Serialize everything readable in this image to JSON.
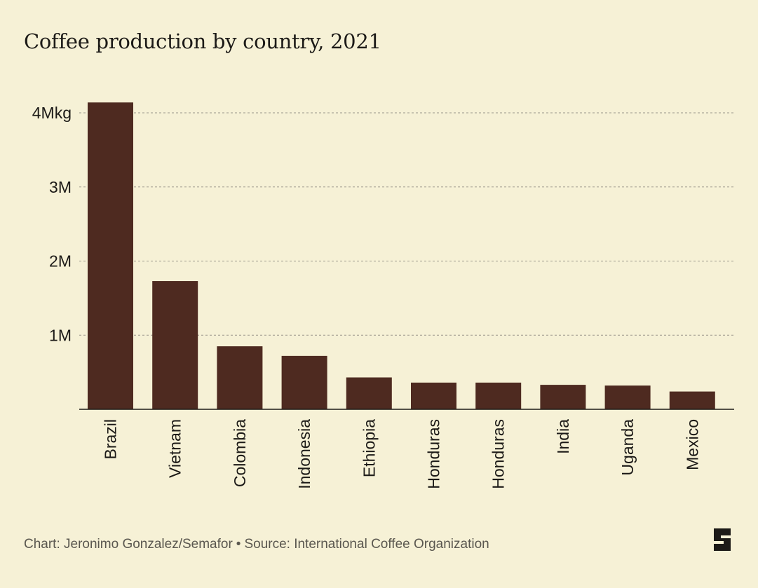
{
  "chart_data": {
    "type": "bar",
    "title": "Coffee production by country, 2021",
    "categories": [
      "Brazil",
      "Vietnam",
      "Colombia",
      "Indonesia",
      "Ethiopia",
      "Honduras",
      "Honduras",
      "India",
      "Uganda",
      "Mexico"
    ],
    "values": [
      4.14,
      1.73,
      0.85,
      0.72,
      0.43,
      0.36,
      0.36,
      0.33,
      0.32,
      0.24
    ],
    "value_unit": "million kg",
    "ylim": [
      0,
      4
    ],
    "yticks": [
      {
        "value": 1,
        "label": "1M"
      },
      {
        "value": 2,
        "label": "2M"
      },
      {
        "value": 3,
        "label": "3M"
      },
      {
        "value": 4,
        "label": "4Mkg"
      }
    ],
    "xlabel": "",
    "ylabel": "",
    "grid": true,
    "bar_color": "#4e2a20"
  },
  "footer": {
    "chart_credit": "Chart: Jeronimo Gonzalez/Semafor",
    "separator": "•",
    "source": "Source: International Coffee Organization"
  },
  "logo": {
    "icon": "semafor-logo-icon",
    "text": "S"
  },
  "colors": {
    "background": "#f6f1d6",
    "bar": "#4e2a20",
    "text": "#1c1a17",
    "grid": "#9a968a"
  }
}
